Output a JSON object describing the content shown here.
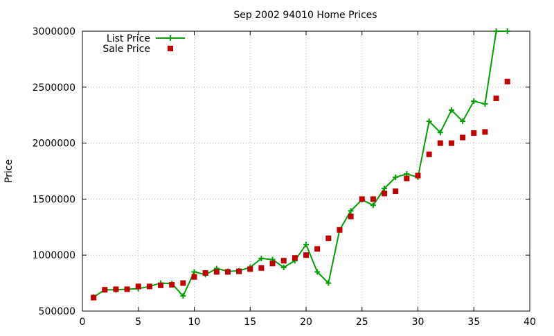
{
  "chart_data": {
    "type": "line",
    "title": "Sep 2002 94010 Home Prices",
    "xlabel": "",
    "ylabel": "Price",
    "xlim": [
      0,
      40
    ],
    "ylim": [
      500000,
      3000000
    ],
    "xticks": [
      0,
      5,
      10,
      15,
      20,
      25,
      30,
      35,
      40
    ],
    "yticks": [
      500000,
      1000000,
      1500000,
      2000000,
      2500000,
      3000000
    ],
    "grid": true,
    "legend_position": "top-left",
    "series": [
      {
        "name": "List Price",
        "style": "line+plus",
        "color": "#00a000",
        "x": [
          1,
          2,
          3,
          4,
          5,
          6,
          7,
          8,
          9,
          10,
          11,
          12,
          13,
          14,
          15,
          16,
          17,
          18,
          19,
          20,
          21,
          22,
          23,
          24,
          25,
          26,
          27,
          28,
          29,
          30,
          31,
          32,
          33,
          34,
          35,
          36,
          37,
          38
        ],
        "y": [
          625000,
          690000,
          690000,
          695000,
          700000,
          720000,
          750000,
          745000,
          635000,
          850000,
          825000,
          880000,
          855000,
          860000,
          890000,
          970000,
          960000,
          890000,
          950000,
          1095000,
          850000,
          750000,
          1225000,
          1395000,
          1495000,
          1445000,
          1595000,
          1695000,
          1725000,
          1695000,
          2195000,
          2095000,
          2295000,
          2195000,
          2375000,
          2350000,
          3000000,
          3000000
        ]
      },
      {
        "name": "Sale Price",
        "style": "square",
        "color": "#c00000",
        "x": [
          1,
          2,
          3,
          4,
          5,
          6,
          7,
          8,
          9,
          10,
          11,
          12,
          13,
          14,
          15,
          16,
          17,
          18,
          19,
          20,
          21,
          22,
          23,
          24,
          25,
          26,
          27,
          28,
          29,
          30,
          31,
          32,
          33,
          34,
          35,
          36,
          37,
          38
        ],
        "y": [
          620000,
          690000,
          695000,
          695000,
          720000,
          720000,
          730000,
          735000,
          750000,
          805000,
          840000,
          850000,
          850000,
          855000,
          875000,
          885000,
          925000,
          950000,
          975000,
          1000000,
          1055000,
          1150000,
          1225000,
          1345000,
          1500000,
          1500000,
          1550000,
          1570000,
          1685000,
          1710000,
          1900000,
          2000000,
          2000000,
          2050000,
          2090000,
          2100000,
          2400000,
          2550000
        ]
      }
    ]
  }
}
